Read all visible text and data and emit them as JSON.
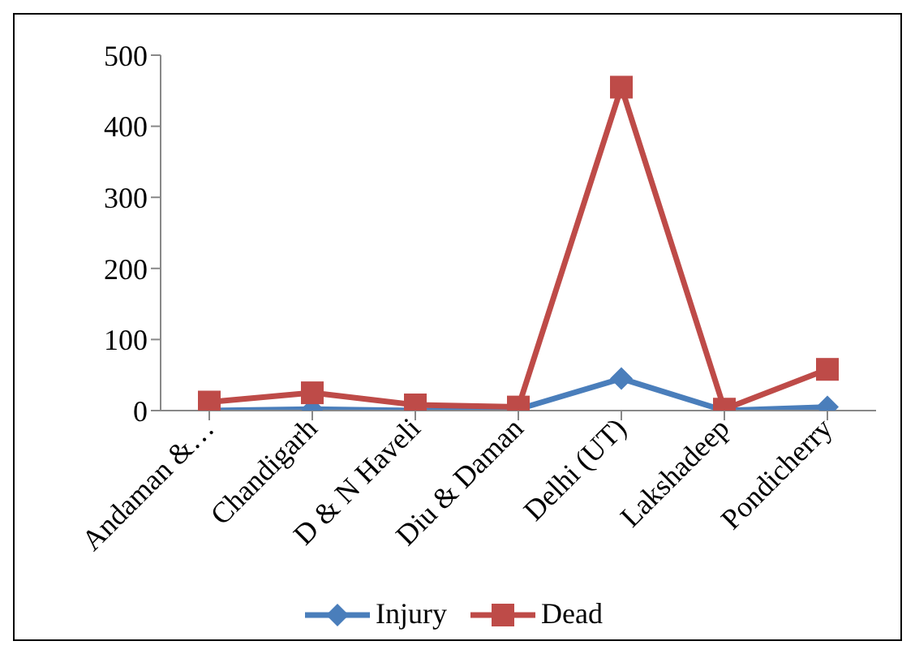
{
  "chart_data": {
    "type": "line",
    "categories": [
      "Andaman &…",
      "Chandigarh",
      "D & N Haveli",
      "Diu & Daman",
      "Delhi (UT)",
      "Lakshadeep",
      "Pondicherry"
    ],
    "series": [
      {
        "name": "Injury",
        "color": "#4a7ebb",
        "values": [
          0,
          2,
          0,
          2,
          45,
          0,
          5
        ],
        "marker": "diamond"
      },
      {
        "name": "Dead",
        "color": "#be4b48",
        "values": [
          12,
          25,
          8,
          5,
          455,
          2,
          58
        ],
        "marker": "square"
      }
    ],
    "ylim": [
      0,
      500
    ],
    "yticks": [
      0,
      100,
      200,
      300,
      400,
      500
    ],
    "grid": false,
    "legend": "bottom"
  }
}
